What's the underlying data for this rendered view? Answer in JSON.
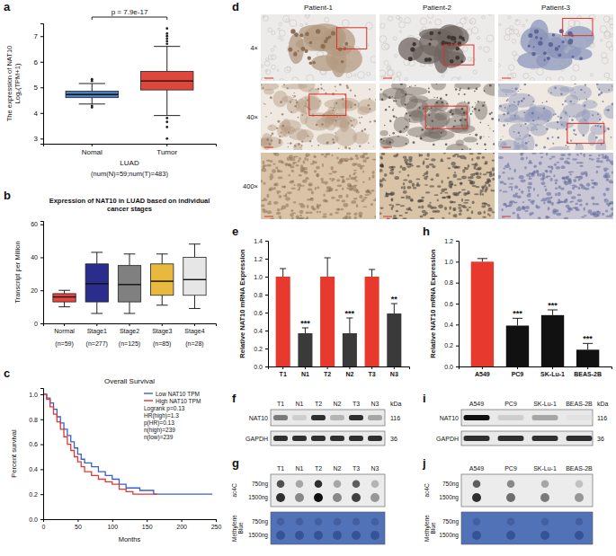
{
  "chart_data": [
    {
      "panel": "a",
      "type": "box",
      "annotation": "p = 7.9e-17",
      "ylabel": "The expression of NAT10 Log₂(TPM+1)",
      "xlabel": "LUAD",
      "note": "(num(N)=59;num(T)=483)",
      "categories": [
        "Nomal",
        "Tumor"
      ],
      "colors": [
        "#4a7fc1",
        "#e0473c"
      ],
      "boxes": [
        {
          "whisker_low": 4.35,
          "q1": 4.6,
          "median": 4.72,
          "q3": 4.85,
          "whisker_high": 5.15,
          "outliers": [
            4.22,
            4.28,
            5.25,
            5.32
          ]
        },
        {
          "whisker_low": 3.9,
          "q1": 4.9,
          "median": 5.25,
          "q3": 5.62,
          "whisker_high": 6.6,
          "outliers": [
            3,
            3.45,
            3.65,
            3.8,
            6.7,
            6.8,
            6.9,
            7,
            7.1,
            7.3
          ]
        }
      ],
      "ylim": [
        2.8,
        7.5
      ],
      "yticks": [
        3,
        4,
        5,
        6,
        7
      ]
    },
    {
      "panel": "b",
      "type": "box",
      "title": "Expression of NAT10 in LUAD based on individual cancer stages",
      "ylabel": "Transcript per Million",
      "categories": [
        "Normal",
        "Stage1",
        "Stage2",
        "Stage3",
        "Stage4"
      ],
      "category_counts": [
        "(n=59)",
        "(n=277)",
        "(n=125)",
        "(n=85)",
        "(n=28)"
      ],
      "colors": [
        "#e8463c",
        "#2b2d8c",
        "#808080",
        "#e9b93f",
        "#e6e6e6"
      ],
      "boxes": [
        {
          "whisker_low": 10,
          "q1": 13,
          "median": 16,
          "q3": 18,
          "whisker_high": 20
        },
        {
          "whisker_low": 6,
          "q1": 13,
          "median": 24,
          "q3": 36,
          "whisker_high": 43
        },
        {
          "whisker_low": 6,
          "q1": 13,
          "median": 23.5,
          "q3": 35,
          "whisker_high": 42
        },
        {
          "whisker_low": 11,
          "q1": 17,
          "median": 25.5,
          "q3": 36,
          "whisker_high": 42
        },
        {
          "whisker_low": 9,
          "q1": 17,
          "median": 26.5,
          "q3": 40,
          "whisker_high": 48
        }
      ],
      "ylim": [
        0,
        62
      ],
      "yticks": [
        0,
        20,
        40,
        60
      ]
    },
    {
      "panel": "c",
      "type": "step",
      "title": "Overall Survival",
      "xlabel": "Months",
      "ylabel": "Percent survival",
      "legend": "upper right",
      "series": [
        {
          "name": "Low NAT10 TPM",
          "color": "#3a5fcd",
          "x": [
            0,
            5,
            10,
            15,
            20,
            25,
            30,
            35,
            40,
            45,
            50,
            55,
            60,
            70,
            80,
            90,
            100,
            110,
            120,
            140,
            160,
            180,
            200,
            245
          ],
          "values": [
            1,
            0.97,
            0.93,
            0.88,
            0.82,
            0.77,
            0.72,
            0.67,
            0.62,
            0.57,
            0.52,
            0.48,
            0.45,
            0.42,
            0.38,
            0.35,
            0.32,
            0.28,
            0.25,
            0.23,
            0.2,
            0.2,
            0.2,
            0.2
          ]
        },
        {
          "name": "High NAT10 TPM",
          "color": "#e0392f",
          "x": [
            0,
            5,
            10,
            15,
            20,
            25,
            30,
            35,
            40,
            45,
            50,
            55,
            60,
            70,
            80,
            90,
            100,
            110,
            120,
            130,
            165
          ],
          "values": [
            1,
            0.96,
            0.9,
            0.84,
            0.78,
            0.72,
            0.66,
            0.6,
            0.55,
            0.5,
            0.46,
            0.42,
            0.38,
            0.35,
            0.32,
            0.3,
            0.28,
            0.24,
            0.22,
            0.2,
            0.2
          ]
        }
      ],
      "stats": [
        "Logrank p=0.13",
        "HR(high)=1.3",
        "p(HR)=0.13",
        "n(high)=239",
        "n(low)=239"
      ],
      "xlim": [
        0,
        250
      ],
      "xticks": [
        0,
        50,
        100,
        150,
        200,
        250
      ],
      "ylim": [
        0,
        1.05
      ],
      "yticks": [
        {
          "value": 0,
          "label": "0.0"
        },
        {
          "value": 0.2,
          "label": "0.2"
        },
        {
          "value": 0.4,
          "label": "0.4"
        },
        {
          "value": 0.6,
          "label": "0.6"
        },
        {
          "value": 0.8,
          "label": "0.8"
        },
        {
          "value": 1,
          "label": "1.0"
        }
      ]
    },
    {
      "panel": "e",
      "type": "bar",
      "ylabel": "Relative NAT10 mRNA Expression",
      "categories": [
        "T1",
        "N1",
        "T2",
        "N2",
        "T3",
        "N3"
      ],
      "values": [
        1,
        0.37,
        1,
        0.37,
        1,
        0.59
      ],
      "errors": [
        0.09,
        0.06,
        0.21,
        0.17,
        0.08,
        0.11
      ],
      "colors": [
        "#e8392f",
        "#3a3a3a",
        "#e8392f",
        "#3a3a3a",
        "#e8392f",
        "#3a3a3a"
      ],
      "annotations": [
        null,
        "***",
        null,
        "***",
        null,
        "**"
      ],
      "ylim": [
        0,
        1.4
      ],
      "yticks": [
        {
          "value": 0,
          "label": "0.0"
        },
        {
          "value": 0.2,
          "label": "0.2"
        },
        {
          "value": 0.4,
          "label": "0.4"
        },
        {
          "value": 0.6,
          "label": "0.6"
        },
        {
          "value": 0.8,
          "label": "0.8"
        },
        {
          "value": 1,
          "label": "1.0"
        },
        {
          "value": 1.2,
          "label": "1.2"
        },
        {
          "value": 1.4,
          "label": "1.4"
        }
      ]
    },
    {
      "panel": "h",
      "type": "bar",
      "ylabel": "Relative NAT10 mRNA Expression",
      "categories": [
        "A549",
        "PC9",
        "SK-Lu-1",
        "BEAS-2B"
      ],
      "values": [
        1,
        0.39,
        0.49,
        0.16
      ],
      "errors": [
        0.03,
        0.07,
        0.05,
        0.06
      ],
      "colors": [
        "#e8392f",
        "#111111",
        "#111111",
        "#111111"
      ],
      "annotations": [
        null,
        "***",
        "***",
        "***"
      ],
      "ylim": [
        0,
        1.2
      ],
      "yticks": [
        {
          "value": 0,
          "label": "0.0"
        },
        {
          "value": 0.2,
          "label": "0.2"
        },
        {
          "value": 0.4,
          "label": "0.4"
        },
        {
          "value": 0.6,
          "label": "0.6"
        },
        {
          "value": 0.8,
          "label": "0.8"
        },
        {
          "value": 1,
          "label": "1.0"
        },
        {
          "value": 1.2,
          "label": "1.2"
        }
      ]
    }
  ],
  "ihc": {
    "panel": "d",
    "patients": [
      "Patient-1",
      "Patient-2",
      "Patient-3"
    ],
    "magnifications": [
      "4×",
      "40×",
      "400×"
    ]
  },
  "western_blots": [
    {
      "panel": "f",
      "lanes": [
        "T1",
        "N1",
        "T2",
        "N2",
        "T3",
        "N3"
      ],
      "unit": "kDa",
      "rows": [
        {
          "name": "NAT10",
          "kda": 116,
          "intensity": [
            0.6,
            0.3,
            0.85,
            0.4,
            0.85,
            0.45
          ]
        },
        {
          "name": "GAPDH",
          "kda": 36,
          "intensity": [
            0.85,
            0.85,
            0.85,
            0.85,
            0.85,
            0.85
          ]
        }
      ]
    },
    {
      "panel": "i",
      "lanes": [
        "A549",
        "PC9",
        "SK-Lu-1",
        "BEAS-2B"
      ],
      "unit": "kDa",
      "rows": [
        {
          "name": "NAT10",
          "kda": 116,
          "intensity": [
            0.95,
            0.3,
            0.45,
            0.2
          ]
        },
        {
          "name": "GAPDH",
          "kda": 36,
          "intensity": [
            0.85,
            0.85,
            0.85,
            0.85
          ]
        }
      ]
    }
  ],
  "dot_blots": [
    {
      "panel": "g",
      "lanes": [
        "T1",
        "N1",
        "T2",
        "N2",
        "T3",
        "N3"
      ],
      "amounts": [
        "750ng",
        "1500ng"
      ],
      "stains": [
        {
          "name": "ac4C",
          "intensity": [
            [
              0.75,
              0.45,
              0.85,
              0.45,
              0.7,
              0.4
            ],
            [
              0.85,
              0.55,
              0.95,
              0.55,
              0.8,
              0.5
            ]
          ]
        },
        {
          "name": "Methylene Blue",
          "intensity": [
            [
              0.6,
              0.6,
              0.6,
              0.6,
              0.6,
              0.6
            ],
            [
              0.7,
              0.7,
              0.7,
              0.7,
              0.7,
              0.7
            ]
          ]
        }
      ]
    },
    {
      "panel": "j",
      "lanes": [
        "A549",
        "PC9",
        "SK-Lu-1",
        "BEAS-2B"
      ],
      "amounts": [
        "750ng",
        "1500ng"
      ],
      "stains": [
        {
          "name": "ac4C",
          "intensity": [
            [
              0.7,
              0.55,
              0.45,
              0.35
            ],
            [
              0.85,
              0.65,
              0.6,
              0.5
            ]
          ]
        },
        {
          "name": "Methylene Blue",
          "intensity": [
            [
              0.6,
              0.6,
              0.6,
              0.6
            ],
            [
              0.7,
              0.7,
              0.7,
              0.7
            ]
          ]
        }
      ]
    }
  ]
}
